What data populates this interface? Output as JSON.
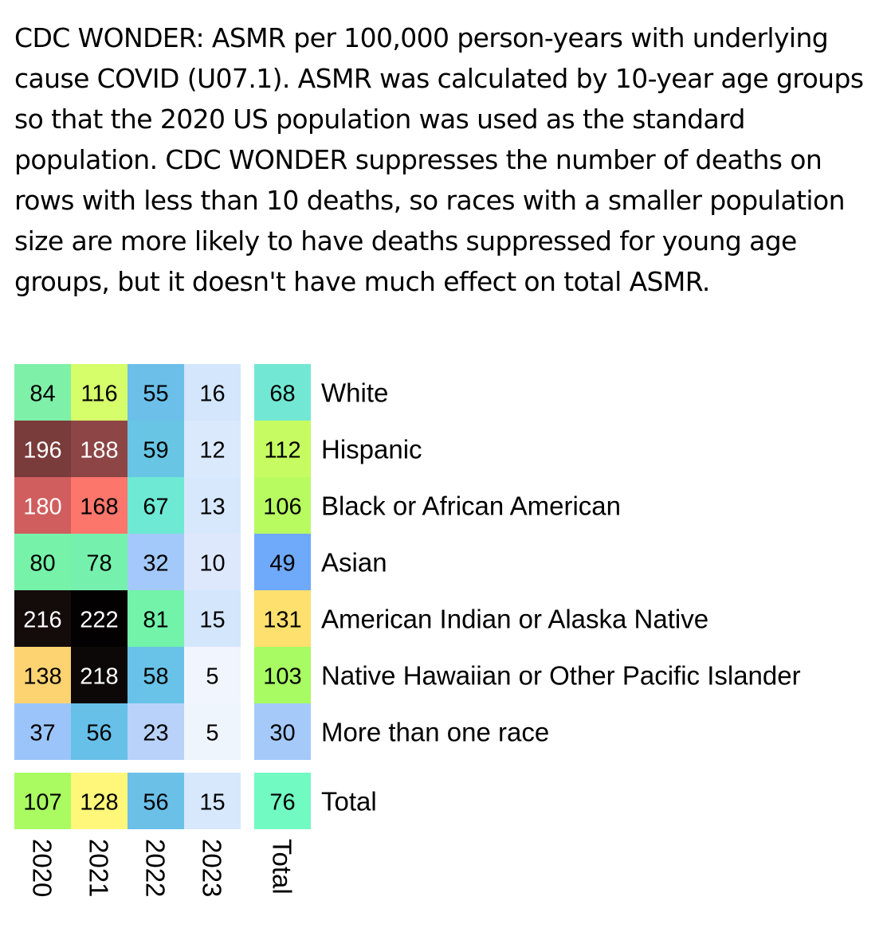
{
  "caption": "CDC WONDER: ASMR per 100,000 person-years with underlying cause COVID (U07.1). ASMR was calculated by 10-year age groups so that the 2020 US population was used as the standard population. CDC WONDER suppresses the number of deaths on rows with less than 10 deaths, so races with a smaller population size are more likely to have deaths suppressed for young age groups, but it doesn't have much effect on total ASMR.",
  "chart_data": {
    "type": "heatmap",
    "title": "",
    "columns": [
      "2020",
      "2021",
      "2022",
      "2023",
      "Total"
    ],
    "rows": [
      {
        "label": "White",
        "values": [
          84,
          116,
          55,
          16,
          68
        ]
      },
      {
        "label": "Hispanic",
        "values": [
          196,
          188,
          59,
          12,
          112
        ]
      },
      {
        "label": "Black or African American",
        "values": [
          180,
          168,
          67,
          13,
          106
        ]
      },
      {
        "label": "Asian",
        "values": [
          80,
          78,
          32,
          10,
          49
        ]
      },
      {
        "label": "American Indian or Alaska Native",
        "values": [
          216,
          222,
          81,
          15,
          131
        ]
      },
      {
        "label": "Native Hawaiian or Other Pacific Islander",
        "values": [
          138,
          218,
          58,
          5,
          103
        ]
      },
      {
        "label": "More than one race",
        "values": [
          37,
          56,
          23,
          5,
          30
        ]
      }
    ],
    "total_row": {
      "label": "Total",
      "values": [
        107,
        128,
        56,
        15,
        76
      ]
    },
    "colors": [
      [
        "#7ef0a8",
        "#d6fd6a",
        "#6bbfe9",
        "#d3e6fc",
        "#72e8d4"
      ],
      [
        "#7a3b3b",
        "#8d4545",
        "#68c6e4",
        "#dbe9fd",
        "#c6fb62"
      ],
      [
        "#d05e5e",
        "#fc766b",
        "#6de9d4",
        "#d7e8fd",
        "#b7fb61"
      ],
      [
        "#76f2a9",
        "#76f1ad",
        "#a3c9fa",
        "#dee8fd",
        "#6fa9fa"
      ],
      [
        "#140b0b",
        "#030101",
        "#72f3a9",
        "#d3e6fc",
        "#fde06e"
      ],
      [
        "#fdd372",
        "#0d0808",
        "#69c3e8",
        "#f1f5fd",
        "#a8fb62"
      ],
      [
        "#9bc5fa",
        "#67c0e8",
        "#b8d2fa",
        "#eff5fd",
        "#a5cafa"
      ]
    ],
    "total_colors": [
      "#aafb62",
      "#fef77a",
      "#6bc0e8",
      "#d7e8fd",
      "#72fac3"
    ],
    "text_colors": {
      "dark": "#000000",
      "light": "#ffffff"
    }
  }
}
